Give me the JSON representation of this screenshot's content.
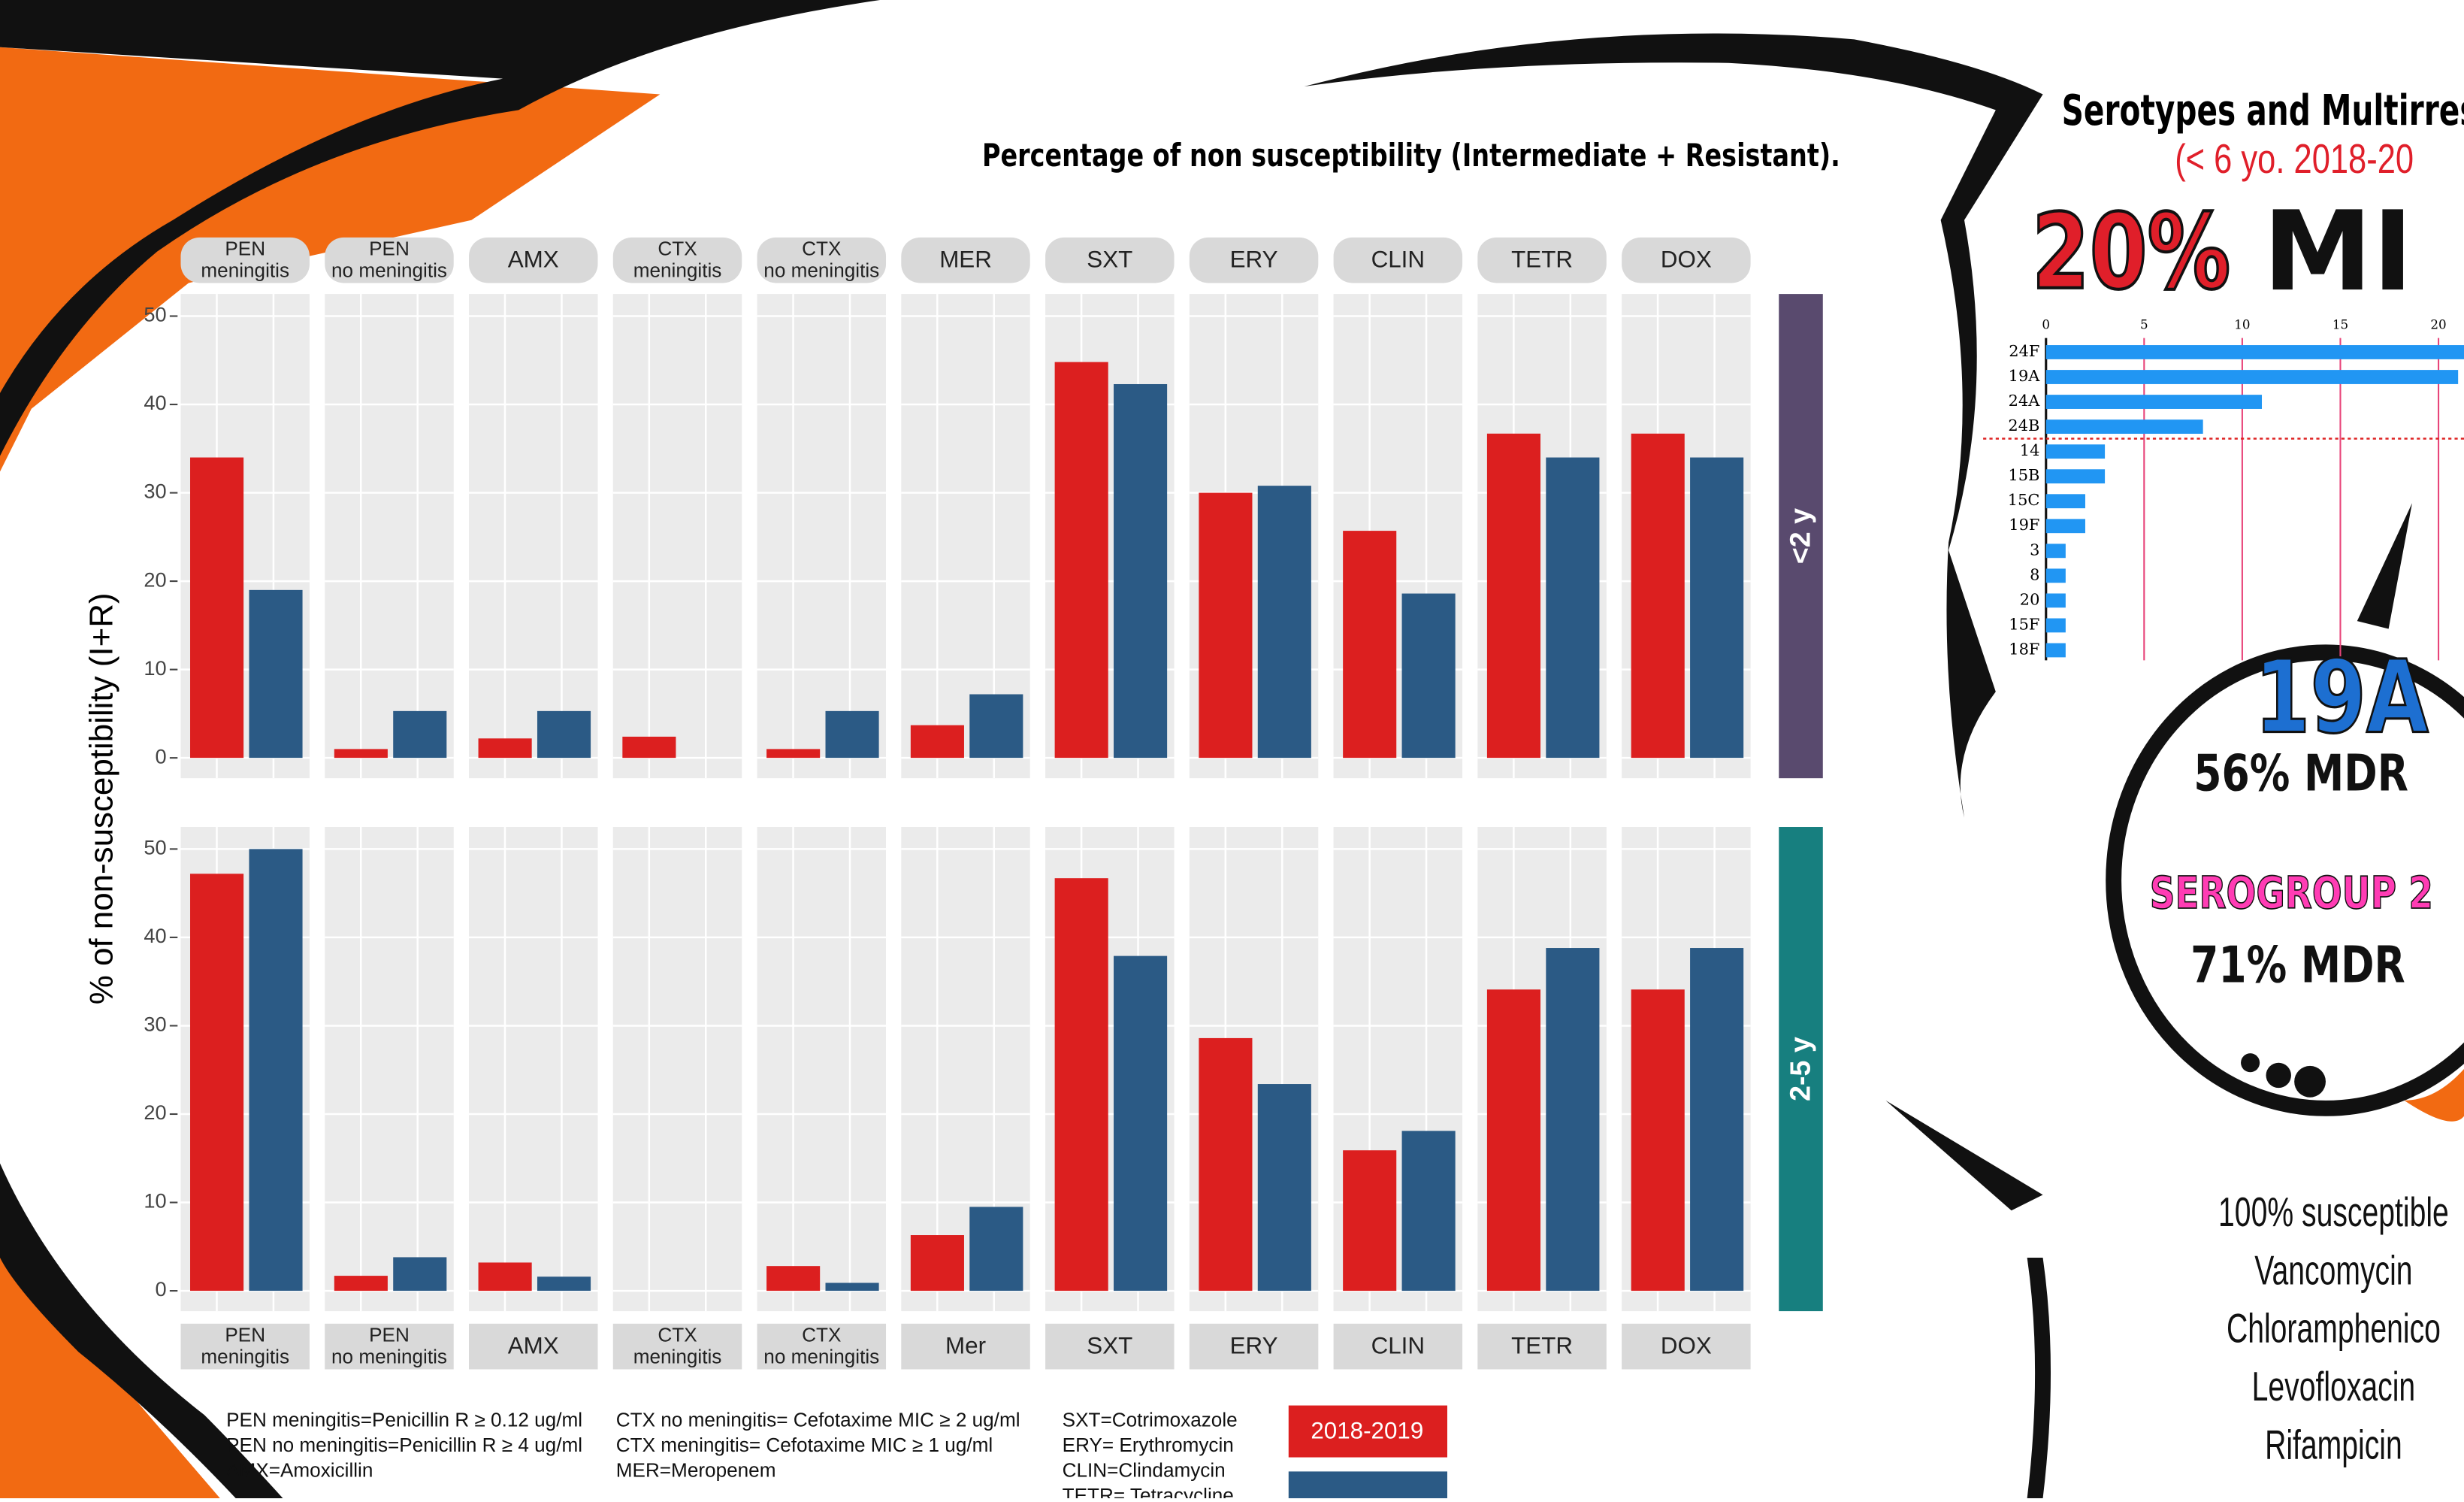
{
  "chart_data": [
    {
      "type": "bar",
      "title": "Percentage of non susceptibility (Intermediate + Resistant).",
      "ylabel": "% of non-susceptibility (I+R)",
      "panel": "<2 y",
      "panel_color": "#594a6e",
      "categories": [
        [
          "PEN",
          "meningitis"
        ],
        [
          "PEN",
          "no meningitis"
        ],
        [
          "AMX"
        ],
        [
          "CTX",
          "meningitis"
        ],
        [
          "CTX",
          "no meningitis"
        ],
        [
          "MER"
        ],
        [
          "SXT"
        ],
        [
          "ERY"
        ],
        [
          "CLIN"
        ],
        [
          "TETR"
        ],
        [
          "DOX"
        ]
      ],
      "series": [
        {
          "name": "2018-2019",
          "color": "#dc1f1f",
          "values": [
            34,
            1,
            2.2,
            2.4,
            1,
            3.7,
            44.8,
            30,
            25.7,
            36.7,
            36.7
          ]
        },
        {
          "color": "#2b5a85",
          "values": [
            19,
            5.3,
            5.3,
            0,
            5.3,
            7.2,
            42.3,
            30.8,
            18.6,
            34,
            34
          ]
        }
      ],
      "ylim": [
        -2.3,
        52.5
      ],
      "yticks": [
        0,
        10,
        20,
        30,
        40,
        50
      ],
      "grid": true
    },
    {
      "type": "bar",
      "panel": "2-5 y",
      "panel_color": "#177f7f",
      "categories": [
        [
          "PEN",
          "meningitis"
        ],
        [
          "PEN",
          "no meningitis"
        ],
        [
          "AMX"
        ],
        [
          "CTX",
          "meningitis"
        ],
        [
          "CTX",
          "no meningitis"
        ],
        [
          "Mer"
        ],
        [
          "SXT"
        ],
        [
          "ERY"
        ],
        [
          "CLIN"
        ],
        [
          "TETR"
        ],
        [
          "DOX"
        ]
      ],
      "series": [
        {
          "color": "#dc1f1f",
          "values": [
            47.2,
            1.7,
            3.2,
            0,
            2.8,
            6.3,
            46.7,
            28.6,
            15.9,
            34.1,
            34.1
          ]
        },
        {
          "color": "#2b5a85",
          "values": [
            50,
            3.8,
            1.6,
            0,
            0.9,
            9.5,
            37.9,
            23.4,
            18.1,
            38.8,
            38.8
          ]
        }
      ],
      "ylim": [
        -2.3,
        52.5
      ],
      "yticks": [
        0,
        10,
        20,
        30,
        40,
        50
      ],
      "grid": true
    },
    {
      "type": "hbar",
      "color": "#2196f3",
      "categories": [
        "24F",
        "19A",
        "24A",
        "24B",
        "14",
        "15B",
        "15C",
        "19F",
        "3",
        "8",
        "20",
        "15F",
        "18F"
      ],
      "values": [
        22,
        21,
        11,
        8,
        3,
        3,
        2,
        2,
        1,
        1,
        1,
        1,
        1
      ],
      "xlim": [
        0,
        21.3
      ],
      "xticks": [
        0,
        5,
        10,
        15,
        20
      ],
      "grid": true
    }
  ],
  "notes": [
    [
      "PEN meningitis=Penicillin R ≥ 0.12 ug/ml",
      "PEN no meningitis=Penicillin R ≥ 4 ug/ml",
      "AMX=Amoxicillin"
    ],
    [
      "CTX no meningitis= Cefotaxime MIC ≥ 2 ug/ml",
      "CTX  meningitis= Cefotaxime MIC ≥ 1 ug/ml",
      "MER=Meropenem"
    ],
    [
      "SXT=Cotrimoxazole",
      "ERY= Erythromycin",
      "CLIN=Clindamycin",
      "TETR= Tetracycline"
    ]
  ],
  "infographic": {
    "title": "Serotypes and Multirres",
    "subtitle": "(< 6 yo. 2018-20",
    "big_pct": "20%",
    "big_word": "MI",
    "s1": "19A",
    "s1_pct": "56% MDR",
    "s2": "SEROGROUP 2",
    "s2_pct": "71% MDR",
    "susceptible": [
      "100% susceptible",
      "Vancomycin",
      "Chloramphenico",
      "Levofloxacin",
      "Rifampicin"
    ]
  }
}
